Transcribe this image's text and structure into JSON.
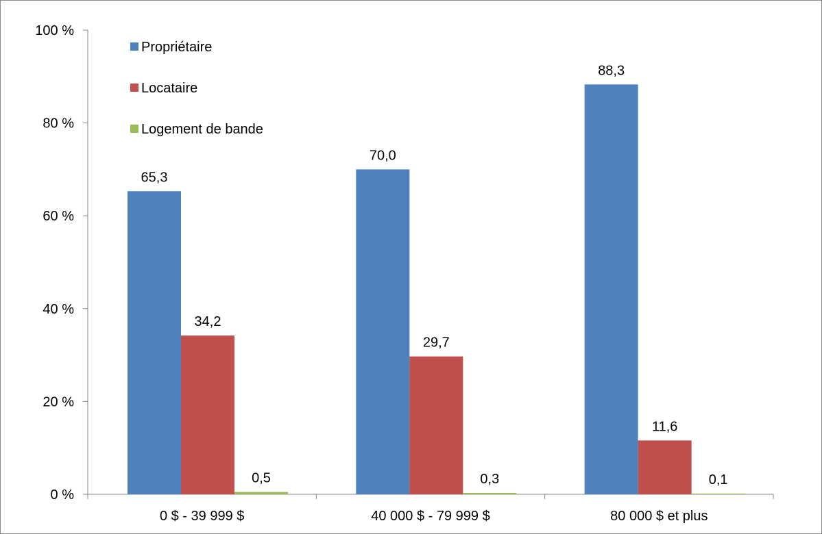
{
  "chart_data": {
    "type": "bar",
    "categories": [
      "0 $ - 39 999 $",
      "40 000 $ - 79 999 $",
      "80 000 $ et plus"
    ],
    "series": [
      {
        "name": "Propriétaire",
        "color": "#4f81bd",
        "values": [
          65.3,
          70.0,
          88.3
        ],
        "labels": [
          "65,3",
          "70,0",
          "88,3"
        ]
      },
      {
        "name": "Locataire",
        "color": "#c0504d",
        "values": [
          34.2,
          29.7,
          11.6
        ],
        "labels": [
          "34,2",
          "29,7",
          "11,6"
        ]
      },
      {
        "name": "Logement de bande",
        "color": "#9bbb59",
        "values": [
          0.5,
          0.3,
          0.1
        ],
        "labels": [
          "0,5",
          "0,3",
          "0,1"
        ]
      }
    ],
    "ylim": [
      0,
      100
    ],
    "yticks": [
      0,
      20,
      40,
      60,
      80,
      100
    ],
    "ytick_labels": [
      "0 %",
      "20 %",
      "40 %",
      "60 %",
      "80 %",
      "100 %"
    ],
    "legend_position": "top-left",
    "grid": false
  }
}
